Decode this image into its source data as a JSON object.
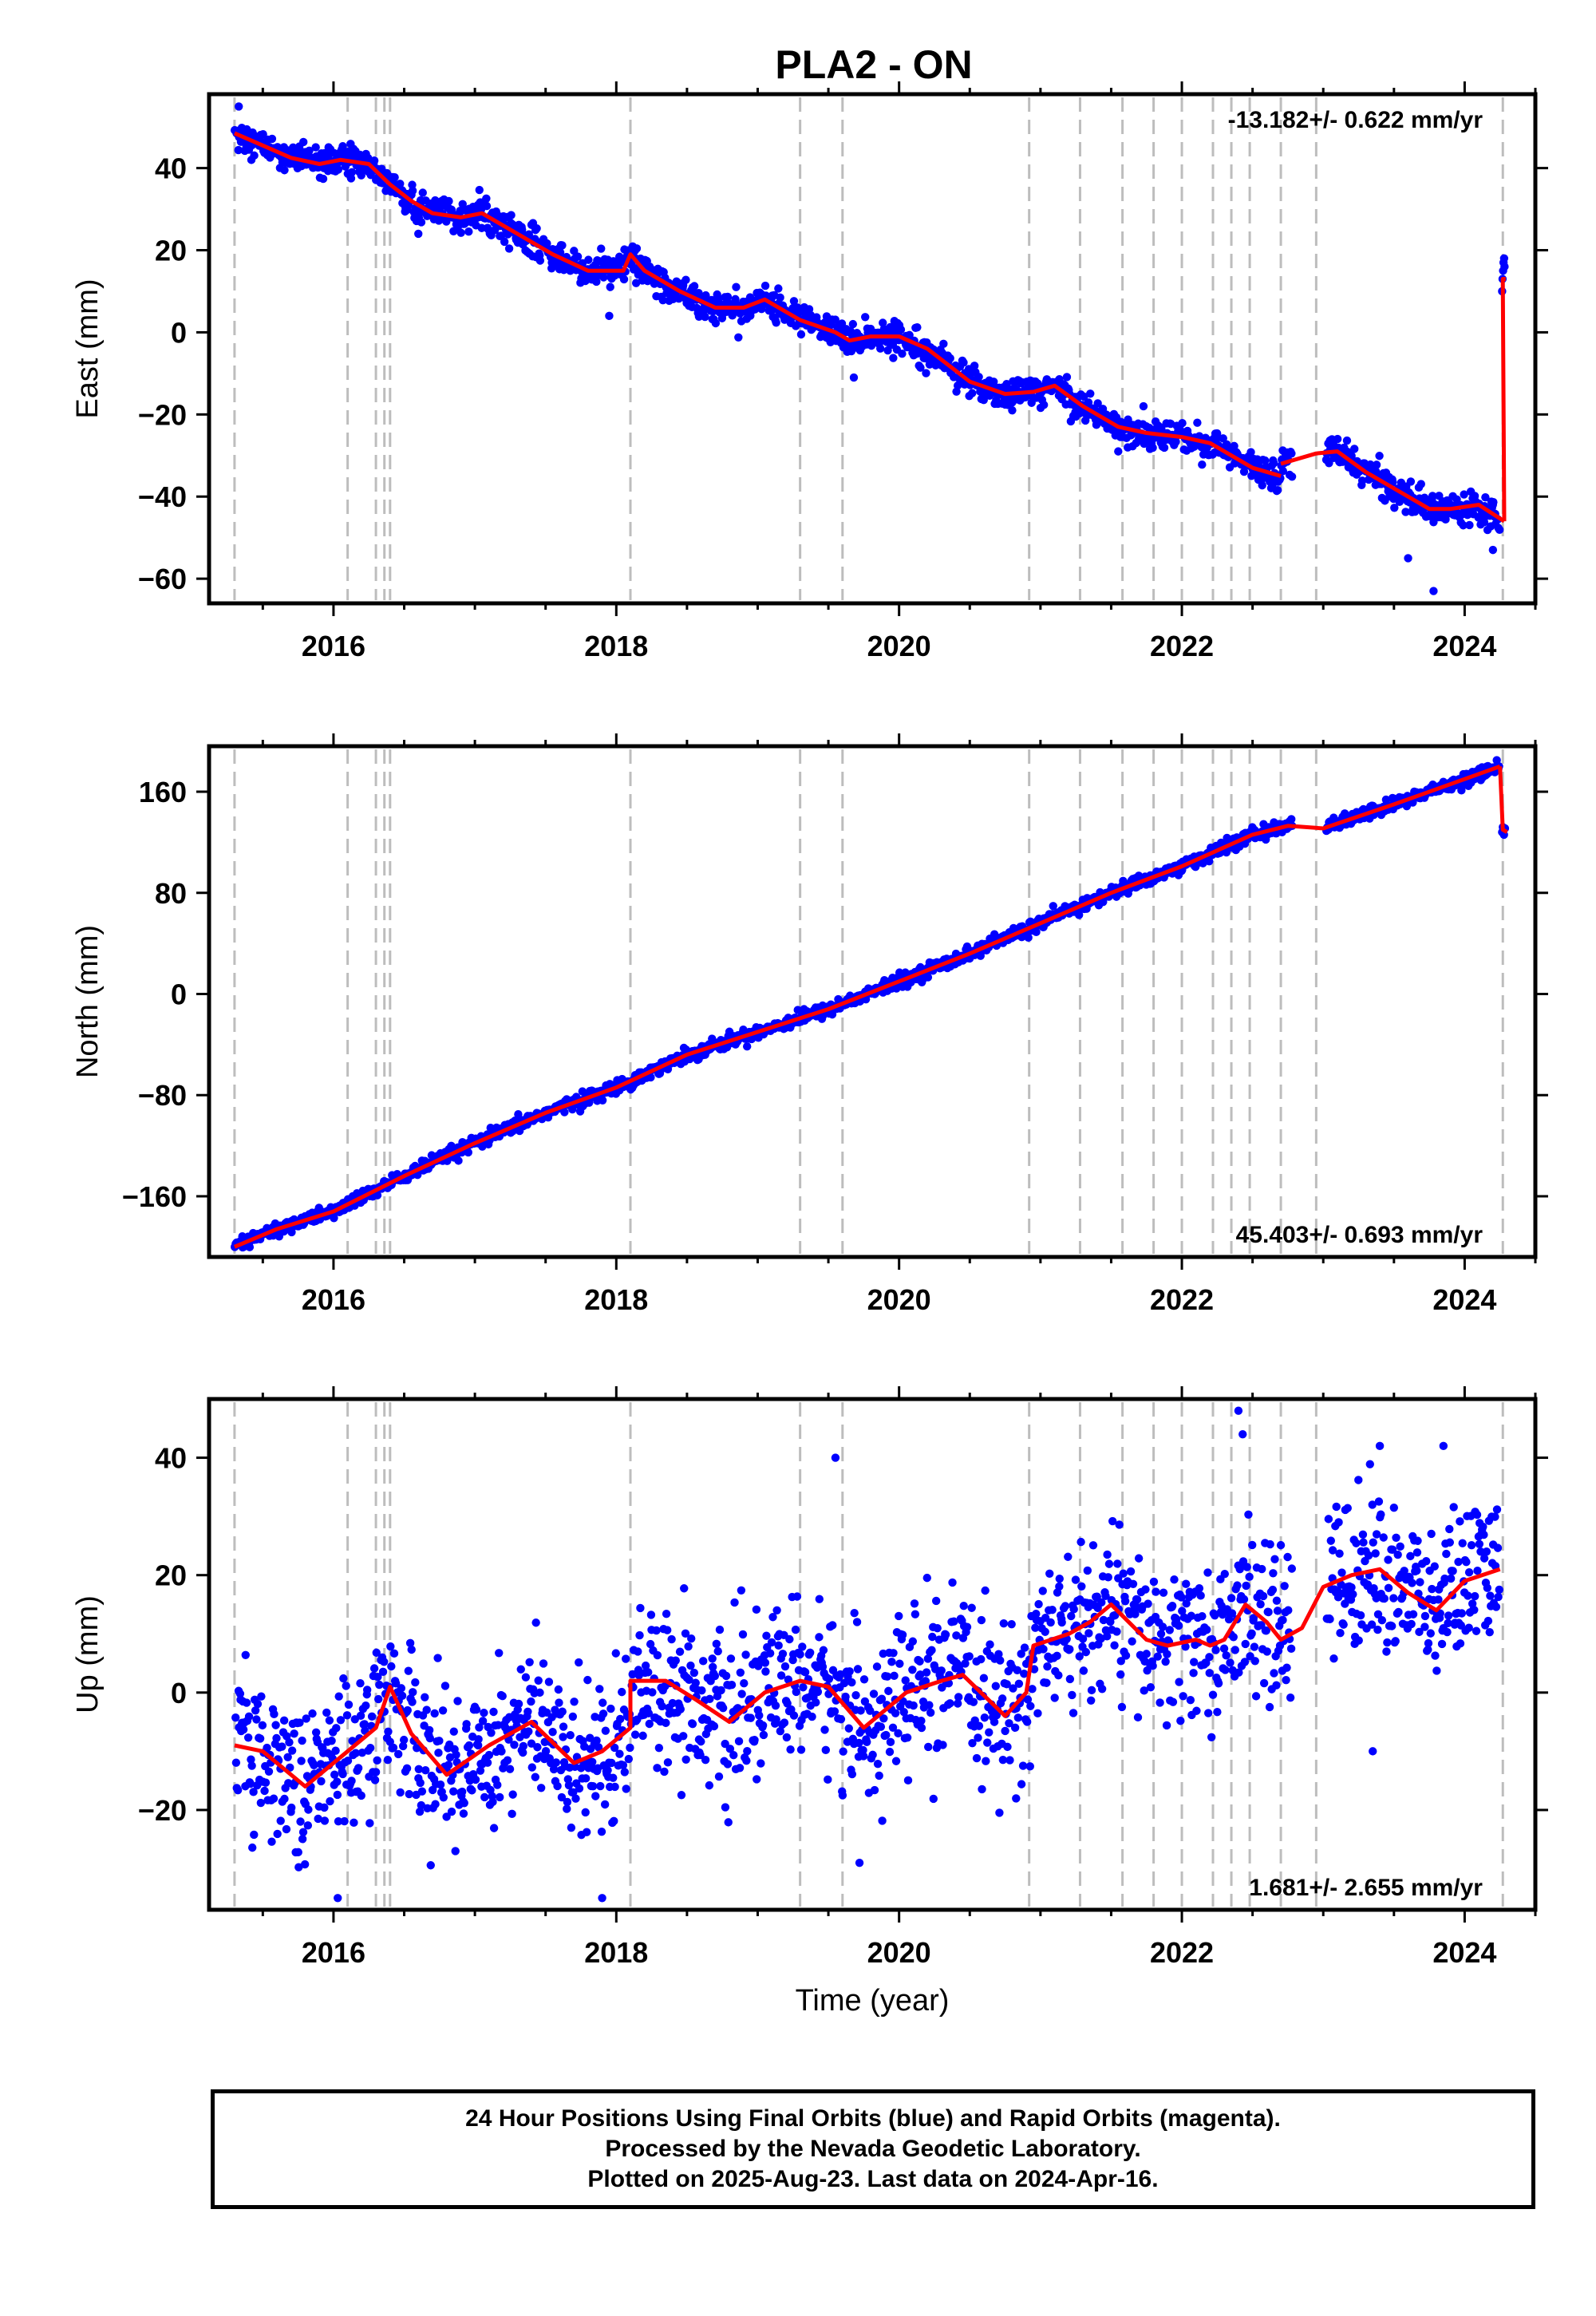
{
  "title": "PLA2 - ON",
  "colors": {
    "data": "#0000ff",
    "model": "#ff0000",
    "event_lines": "#bdbdbd",
    "frame": "#000000"
  },
  "chart_data": [
    {
      "type": "scatter",
      "component": "east",
      "ylabel": "East (mm)",
      "rate_label": "-13.182+/- 0.622 mm/yr",
      "rate_position": "top-right",
      "xlim": [
        2015.12,
        2024.5
      ],
      "ylim": [
        -66,
        58
      ],
      "yticks": [
        40,
        20,
        0,
        -20,
        -40,
        -60
      ],
      "xticks": [
        2016,
        2018,
        2020,
        2022,
        2024
      ],
      "model": {
        "segments": [
          [
            [
              2015.3,
              48.5
            ],
            [
              2015.5,
              45.5
            ],
            [
              2015.7,
              42.5
            ],
            [
              2015.9,
              41
            ],
            [
              2016.05,
              42
            ],
            [
              2016.25,
              41
            ],
            [
              2016.4,
              36
            ],
            [
              2016.55,
              32
            ],
            [
              2016.7,
              29
            ],
            [
              2016.9,
              28
            ],
            [
              2017.05,
              29
            ],
            [
              2017.3,
              24
            ],
            [
              2017.55,
              19
            ],
            [
              2017.8,
              15
            ],
            [
              2018.05,
              15
            ],
            [
              2018.1,
              19
            ],
            [
              2018.2,
              15
            ],
            [
              2018.45,
              10
            ],
            [
              2018.7,
              6
            ],
            [
              2018.9,
              6
            ],
            [
              2019.05,
              8
            ],
            [
              2019.3,
              3
            ],
            [
              2019.55,
              0
            ],
            [
              2019.65,
              -2
            ],
            [
              2019.8,
              -1
            ],
            [
              2020.0,
              -1
            ],
            [
              2020.2,
              -4
            ],
            [
              2020.5,
              -12
            ],
            [
              2020.75,
              -15
            ],
            [
              2020.95,
              -14.5
            ],
            [
              2021.1,
              -13
            ],
            [
              2021.3,
              -18
            ],
            [
              2021.55,
              -23
            ],
            [
              2021.75,
              -24.5
            ],
            [
              2022.0,
              -25.5
            ],
            [
              2022.2,
              -27
            ],
            [
              2022.5,
              -33
            ],
            [
              2022.7,
              -35
            ]
          ],
          [
            [
              2022.7,
              -32
            ],
            [
              2022.95,
              -29.5
            ],
            [
              2023.1,
              -29
            ],
            [
              2023.3,
              -34
            ],
            [
              2023.55,
              -39
            ],
            [
              2023.75,
              -43
            ],
            [
              2023.9,
              -43
            ],
            [
              2024.1,
              -42
            ],
            [
              2024.28,
              -46
            ]
          ],
          [
            [
              2024.28,
              -46
            ],
            [
              2024.27,
              13
            ],
            [
              2024.29,
              13
            ]
          ]
        ]
      },
      "point_clusters": [
        {
          "x0": 2015.28,
          "x1": 2024.25,
          "anchor": "east",
          "spread": 1.8,
          "count": 1750
        },
        {
          "x0": 2024.26,
          "x1": 2024.3,
          "fixed": [
            [
              2024.265,
              10
            ],
            [
              2024.268,
              13
            ],
            [
              2024.272,
              15
            ],
            [
              2024.275,
              17
            ],
            [
              2024.279,
              18
            ],
            [
              2024.282,
              16
            ]
          ]
        }
      ],
      "outliers": [
        [
          2015.33,
          55
        ],
        [
          2016.6,
          24
        ],
        [
          2017.95,
          4
        ],
        [
          2019.68,
          -11
        ],
        [
          2020.8,
          -19
        ],
        [
          2021.55,
          -29
        ],
        [
          2023.78,
          -63
        ],
        [
          2023.6,
          -55
        ],
        [
          2024.2,
          -53
        ]
      ]
    },
    {
      "type": "scatter",
      "component": "north",
      "ylabel": "North (mm)",
      "rate_label": "45.403+/- 0.693 mm/yr",
      "rate_position": "bottom-right",
      "xlim": [
        2015.12,
        2024.5
      ],
      "ylim": [
        -208,
        196
      ],
      "yticks": [
        160,
        80,
        0,
        -80,
        -160
      ],
      "xticks": [
        2016,
        2018,
        2020,
        2022,
        2024
      ],
      "model": {
        "segments": [
          [
            [
              2015.3,
              -200
            ],
            [
              2015.6,
              -186
            ],
            [
              2016.0,
              -172
            ],
            [
              2016.5,
              -144
            ],
            [
              2017.0,
              -118
            ],
            [
              2017.5,
              -94
            ],
            [
              2018.0,
              -74
            ],
            [
              2018.5,
              -48
            ],
            [
              2019.0,
              -30
            ],
            [
              2019.5,
              -12
            ],
            [
              2020.0,
              10
            ],
            [
              2020.5,
              32
            ],
            [
              2021.0,
              56
            ],
            [
              2021.5,
              80
            ],
            [
              2022.0,
              101
            ],
            [
              2022.5,
              126
            ],
            [
              2022.75,
              133
            ],
            [
              2023.0,
              131
            ],
            [
              2023.5,
              150
            ],
            [
              2024.0,
              170
            ],
            [
              2024.25,
              180
            ]
          ],
          [
            [
              2024.25,
              180
            ],
            [
              2024.27,
              130
            ],
            [
              2024.3,
              128
            ]
          ]
        ]
      },
      "point_clusters": [
        {
          "x0": 2015.28,
          "x1": 2024.25,
          "anchor": "north",
          "spread": 2.6,
          "count": 1700
        },
        {
          "x0": 2024.26,
          "x1": 2024.3,
          "fixed": [
            [
              2024.265,
              128
            ],
            [
              2024.27,
              132
            ],
            [
              2024.278,
              126
            ],
            [
              2024.285,
              131
            ]
          ]
        }
      ],
      "outliers": []
    },
    {
      "type": "scatter",
      "component": "up",
      "ylabel": "Up (mm)",
      "xlabel": "Time (year)",
      "rate_label": "1.681+/- 2.655 mm/yr",
      "rate_position": "bottom-right",
      "xlim": [
        2015.12,
        2024.5
      ],
      "ylim": [
        -37,
        50
      ],
      "yticks": [
        40,
        20,
        0,
        -20
      ],
      "xticks": [
        2016,
        2018,
        2020,
        2022,
        2024
      ],
      "model": {
        "segments": [
          [
            [
              2015.3,
              -9
            ],
            [
              2015.5,
              -10
            ],
            [
              2015.8,
              -16
            ],
            [
              2016.1,
              -10
            ],
            [
              2016.3,
              -6
            ],
            [
              2016.4,
              1
            ],
            [
              2016.55,
              -7
            ],
            [
              2016.8,
              -14
            ],
            [
              2017.1,
              -9
            ],
            [
              2017.4,
              -5
            ],
            [
              2017.7,
              -12
            ],
            [
              2017.9,
              -10
            ],
            [
              2018.1,
              -6
            ],
            [
              2018.1,
              2
            ],
            [
              2018.35,
              2
            ],
            [
              2018.55,
              -1
            ],
            [
              2018.8,
              -5
            ],
            [
              2019.05,
              0
            ],
            [
              2019.3,
              2
            ],
            [
              2019.5,
              1
            ],
            [
              2019.75,
              -6
            ],
            [
              2020.05,
              0
            ],
            [
              2020.3,
              2
            ],
            [
              2020.45,
              3
            ],
            [
              2020.75,
              -4
            ],
            [
              2020.9,
              0
            ],
            [
              2020.95,
              8
            ],
            [
              2021.2,
              10
            ],
            [
              2021.35,
              12
            ],
            [
              2021.5,
              15
            ],
            [
              2021.75,
              9
            ],
            [
              2021.9,
              8
            ],
            [
              2022.1,
              9
            ],
            [
              2022.2,
              8
            ],
            [
              2022.3,
              9
            ],
            [
              2022.45,
              15
            ],
            [
              2022.6,
              12
            ],
            [
              2022.7,
              9
            ],
            [
              2022.85,
              11
            ],
            [
              2023.0,
              18
            ],
            [
              2023.2,
              20
            ],
            [
              2023.4,
              21
            ],
            [
              2023.6,
              17
            ],
            [
              2023.8,
              14
            ],
            [
              2024.0,
              19
            ],
            [
              2024.25,
              21
            ]
          ]
        ]
      },
      "point_clusters": [
        {
          "x0": 2015.28,
          "x1": 2024.25,
          "anchor": "up",
          "spread": 6.5,
          "count": 1700
        }
      ],
      "outliers": [
        [
          2016.03,
          -35
        ],
        [
          2017.9,
          -35
        ],
        [
          2019.72,
          -29
        ],
        [
          2019.55,
          40
        ],
        [
          2022.4,
          48
        ],
        [
          2022.43,
          44
        ],
        [
          2023.4,
          42
        ],
        [
          2023.85,
          42
        ],
        [
          2023.35,
          -10
        ]
      ]
    }
  ],
  "event_lines": [
    2015.3,
    2016.1,
    2016.3,
    2016.36,
    2016.4,
    2018.1,
    2019.3,
    2019.6,
    2020.92,
    2021.28,
    2021.58,
    2021.8,
    2022.0,
    2022.22,
    2022.35,
    2022.48,
    2022.7,
    2022.95,
    2024.27
  ],
  "footer": {
    "line1": "24 Hour Positions Using Final Orbits (blue) and Rapid Orbits (magenta).",
    "line2": "Processed by the Nevada Geodetic Laboratory.",
    "line3": "Plotted on 2025-Aug-23. Last data on 2024-Apr-16."
  }
}
